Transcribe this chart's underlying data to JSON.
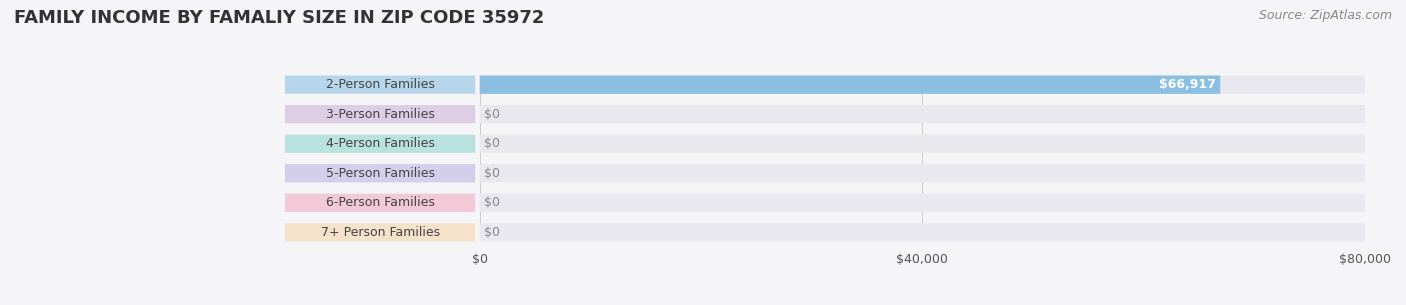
{
  "title": "FAMILY INCOME BY FAMALIY SIZE IN ZIP CODE 35972",
  "source": "Source: ZipAtlas.com",
  "categories": [
    "2-Person Families",
    "3-Person Families",
    "4-Person Families",
    "5-Person Families",
    "6-Person Families",
    "7+ Person Families"
  ],
  "values": [
    66917,
    0,
    0,
    0,
    0,
    0
  ],
  "bar_colors": [
    "#7ab8e0",
    "#c9a8d4",
    "#7ecec4",
    "#b0a8e0",
    "#f0a0b8",
    "#f8d0a0"
  ],
  "max_value": 80000,
  "x_ticks": [
    0,
    40000,
    80000
  ],
  "x_tick_labels": [
    "$0",
    "$40,000",
    "$80,000"
  ],
  "value_label": "$66,917",
  "background_color": "#f5f5f8",
  "bar_bg_color": "#e8e8ee",
  "title_fontsize": 13,
  "source_fontsize": 9,
  "label_fontsize": 9,
  "value_fontsize": 9
}
